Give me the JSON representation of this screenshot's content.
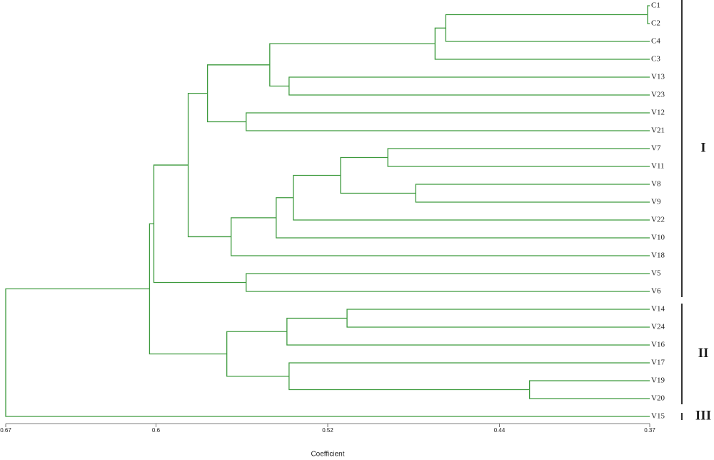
{
  "chart_data": {
    "type": "dendrogram",
    "x_label": "Coefficient",
    "color": "#3d9a3d",
    "xlim": [
      0.67,
      0.37
    ],
    "xticks": [
      0.67,
      0.6,
      0.52,
      0.44,
      0.37
    ],
    "leaves": [
      "C1",
      "C2",
      "C4",
      "C3",
      "V13",
      "V23",
      "V12",
      "V21",
      "V7",
      "V11",
      "V8",
      "V9",
      "V22",
      "V10",
      "V18",
      "V5",
      "V6",
      "V14",
      "V24",
      "V16",
      "V17",
      "V19",
      "V20",
      "V15"
    ],
    "merges": [
      {
        "children": [
          0,
          1
        ],
        "height": 0.371
      },
      {
        "children": [
          24,
          2
        ],
        "height": 0.465
      },
      {
        "children": [
          25,
          3
        ],
        "height": 0.47
      },
      {
        "children": [
          4,
          5
        ],
        "height": 0.538
      },
      {
        "children": [
          26,
          27
        ],
        "height": 0.547
      },
      {
        "children": [
          6,
          7
        ],
        "height": 0.558
      },
      {
        "children": [
          28,
          29
        ],
        "height": 0.576
      },
      {
        "children": [
          8,
          9
        ],
        "height": 0.492
      },
      {
        "children": [
          10,
          11
        ],
        "height": 0.479
      },
      {
        "children": [
          31,
          32
        ],
        "height": 0.514
      },
      {
        "children": [
          33,
          12
        ],
        "height": 0.536
      },
      {
        "children": [
          34,
          13
        ],
        "height": 0.544
      },
      {
        "children": [
          35,
          14
        ],
        "height": 0.565
      },
      {
        "children": [
          30,
          36
        ],
        "height": 0.585
      },
      {
        "children": [
          15,
          16
        ],
        "height": 0.558
      },
      {
        "children": [
          37,
          38
        ],
        "height": 0.601
      },
      {
        "children": [
          17,
          18
        ],
        "height": 0.511
      },
      {
        "children": [
          40,
          19
        ],
        "height": 0.539
      },
      {
        "children": [
          21,
          22
        ],
        "height": 0.426
      },
      {
        "children": [
          20,
          42
        ],
        "height": 0.538
      },
      {
        "children": [
          41,
          43
        ],
        "height": 0.567
      },
      {
        "children": [
          39,
          44
        ],
        "height": 0.603
      },
      {
        "children": [
          45,
          23
        ],
        "height": 0.67
      }
    ],
    "groups": [
      {
        "label": "I",
        "from": 0,
        "to": 16
      },
      {
        "label": "II",
        "from": 17,
        "to": 22
      },
      {
        "label": "III",
        "from": 23,
        "to": 23
      }
    ]
  }
}
